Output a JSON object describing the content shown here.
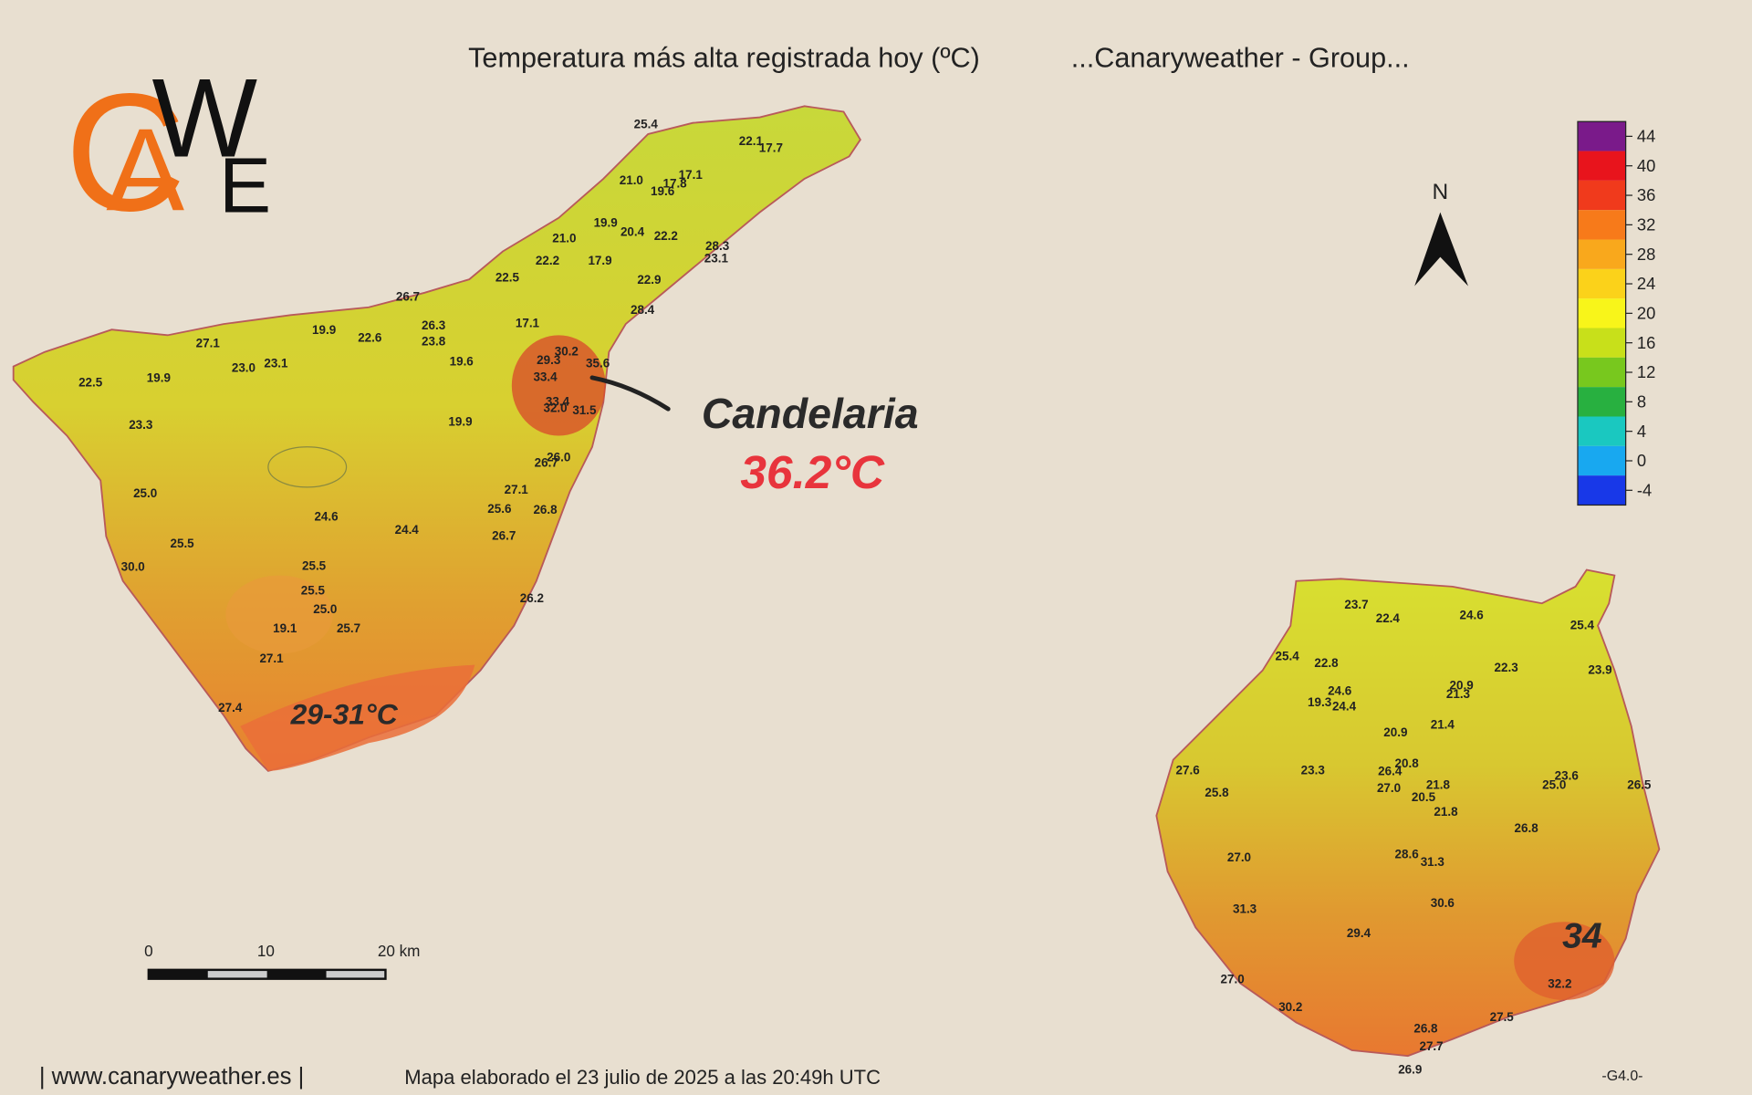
{
  "header": {
    "title": "Temperatura más alta registrada hoy (ºC)",
    "group": "...Canaryweather - Group..."
  },
  "logo": {
    "letters": [
      "C",
      "A",
      "W",
      "E"
    ]
  },
  "compass": {
    "label": "N"
  },
  "legend": {
    "ticks": [
      44,
      40,
      36,
      32,
      28,
      24,
      20,
      16,
      12,
      8,
      4,
      0,
      -4
    ],
    "colors": [
      "#7a1a8a",
      "#e8141c",
      "#f03a1c",
      "#f77a1a",
      "#f9a81c",
      "#fbd21a",
      "#f8f51a",
      "#c8e01a",
      "#78c81e",
      "#28b040",
      "#1ac8c0",
      "#18a8f0",
      "#1838e8"
    ]
  },
  "tenerife": {
    "labels": [
      "25.4",
      "22.1",
      "17.7",
      "21.0",
      "17.8",
      "17.1",
      "19.6",
      "19.9",
      "20.4",
      "22.2",
      "21.0",
      "28.3",
      "23.1",
      "22.2",
      "17.9",
      "22.5",
      "22.9",
      "26.7",
      "28.4",
      "17.1",
      "26.3",
      "19.9",
      "22.6",
      "23.8",
      "27.1",
      "30.2",
      "29.3",
      "35.6",
      "19.6",
      "23.0",
      "23.1",
      "33.4",
      "22.5",
      "19.9",
      "33.4",
      "32.0",
      "31.5",
      "19.9",
      "23.3",
      "26.0",
      "26.7",
      "25.0",
      "27.1",
      "25.6",
      "26.8",
      "24.6",
      "24.4",
      "26.7",
      "25.5",
      "30.0",
      "25.5",
      "25.5",
      "25.0",
      "26.2",
      "25.7",
      "19.1",
      "27.1",
      "27.4"
    ],
    "annotations": {
      "place": "Candelaria",
      "max": "36.2°C",
      "south": "29-31°C"
    }
  },
  "gran_canaria": {
    "labels": [
      "23.7",
      "22.4",
      "24.6",
      "25.4",
      "25.4",
      "22.8",
      "22.3",
      "23.9",
      "24.6",
      "20.9",
      "21.3",
      "19.3",
      "24.4",
      "21.4",
      "20.9",
      "20.8",
      "26.4",
      "27.6",
      "23.3",
      "23.6",
      "25.0",
      "26.5",
      "21.8",
      "27.0",
      "25.8",
      "20.5",
      "21.8",
      "26.8",
      "28.6",
      "31.3",
      "27.0",
      "31.3",
      "30.6",
      "29.4",
      "27.0",
      "32.2",
      "30.2",
      "27.5",
      "26.8",
      "27.7",
      "26.9"
    ],
    "annotation": "34"
  },
  "scale_bar": {
    "ticks": [
      "0",
      "10",
      "20 km"
    ]
  },
  "footer": {
    "site": "| www.canaryweather.es |",
    "note": "Mapa elaborado el 23 julio de 2025 a las 20:49h UTC",
    "version": "-G4.0-"
  }
}
